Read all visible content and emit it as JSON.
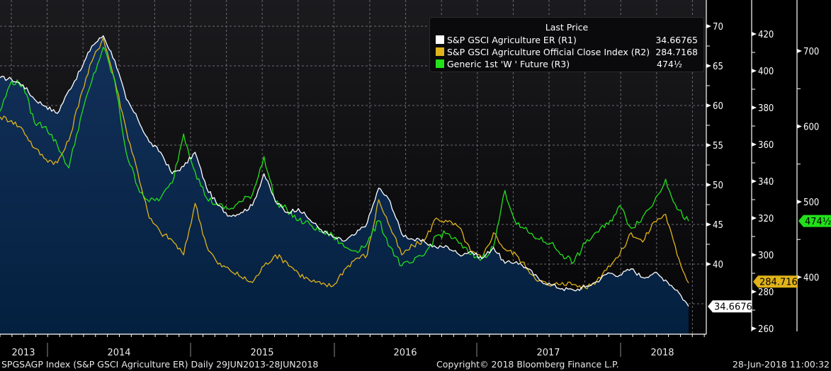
{
  "chart_data": {
    "type": "line",
    "title": "",
    "legend": {
      "title": "Last Price",
      "placement": "top-right",
      "entries": [
        {
          "name": "S&P GSCI Agriculture ER  (R1)",
          "value": "34.66765",
          "color": "#ffffff"
        },
        {
          "name": "S&P GSCI Agriculture Official Close Index  (R2)",
          "value": "284.7168",
          "color": "#e0b31a"
        },
        {
          "name": "Generic 1st 'W ' Future  (R3)",
          "value": "474½",
          "color": "#22e01a"
        }
      ]
    },
    "x_range": [
      "2013-06-29",
      "2018-06-28"
    ],
    "x_labels": [
      "2013",
      "2014",
      "2015",
      "2016",
      "2017",
      "2018"
    ],
    "x_sampling": "monthly, Jul-2013 to Jun-2018",
    "axes": {
      "R1": {
        "ticks": [
          40,
          45,
          50,
          55,
          60,
          65,
          70
        ],
        "range": [
          31.3,
          70.1
        ]
      },
      "R2": {
        "ticks": [
          260,
          280,
          300,
          320,
          340,
          360,
          380,
          400,
          420
        ],
        "range": [
          258,
          424
        ]
      },
      "R3": {
        "ticks": [
          400,
          500,
          600,
          700
        ],
        "range": [
          328,
          733
        ]
      }
    },
    "grid": true,
    "series": [
      {
        "name": "S&P GSCI Agriculture ER (R1)",
        "axis": "R1",
        "color": "#ffffff",
        "filled": true,
        "last_label": "34.66765",
        "values": [
          63.5,
          63.3,
          62.6,
          60.8,
          59.9,
          59.0,
          61.9,
          64.4,
          67.5,
          68.8,
          65.7,
          60.8,
          58.3,
          55.4,
          54.1,
          51.4,
          52.3,
          54.1,
          49.6,
          47.4,
          46.1,
          46.5,
          47.4,
          51.4,
          47.9,
          46.5,
          47.0,
          45.6,
          44.3,
          43.4,
          42.9,
          43.8,
          45.2,
          49.6,
          47.9,
          43.8,
          43.1,
          42.8,
          42.1,
          42.2,
          41.2,
          41.6,
          40.7,
          42.1,
          40.1,
          40.3,
          39.4,
          38.0,
          37.4,
          36.9,
          36.7,
          37.1,
          37.8,
          38.9,
          38.6,
          39.4,
          38.3,
          38.9,
          38.0,
          36.7,
          34.67
        ]
      },
      {
        "name": "S&P GSCI Agriculture Official Close Index (R2)",
        "axis": "R2",
        "color": "#e0b31a",
        "last_label": "284.7168",
        "values": [
          375,
          373,
          368,
          358,
          352,
          350,
          362,
          386,
          405,
          418,
          395,
          368,
          345,
          320,
          312,
          308,
          300,
          328,
          305,
          295,
          292,
          288,
          285,
          294,
          300,
          296,
          290,
          286,
          284,
          283,
          292,
          298,
          300,
          330,
          315,
          300,
          305,
          308,
          320,
          318,
          315,
          302,
          298,
          312,
          303,
          300,
          292,
          286,
          283,
          285,
          284,
          282,
          286,
          294,
          300,
          312,
          307,
          318,
          322,
          300,
          284.72
        ]
      },
      {
        "name": "Generic 1st 'W ' Future (R3)",
        "axis": "R3",
        "color": "#22e01a",
        "last_label": "474½",
        "values": [
          620,
          660,
          655,
          605,
          600,
          575,
          545,
          610,
          660,
          705,
          660,
          565,
          520,
          500,
          505,
          525,
          590,
          540,
          505,
          495,
          490,
          500,
          510,
          560,
          500,
          490,
          475,
          470,
          460,
          455,
          440,
          435,
          445,
          475,
          440,
          415,
          420,
          430,
          455,
          458,
          445,
          430,
          425,
          440,
          515,
          470,
          460,
          450,
          445,
          430,
          420,
          445,
          460,
          470,
          495,
          465,
          480,
          500,
          530,
          490,
          474.5
        ]
      }
    ]
  },
  "axis_labels": {
    "r1_ticks": [
      "70",
      "65",
      "60",
      "55",
      "50",
      "45",
      "40"
    ],
    "r2_ticks": [
      "420",
      "400",
      "380",
      "360",
      "340",
      "320",
      "300",
      "280",
      "260"
    ],
    "r3_ticks": [
      "700",
      "600",
      "500",
      "400"
    ]
  },
  "footer": {
    "left": "SPGSAGP Index (S&P GSCI Agriculture ER)  Daily 29JUN2013-28JUN2018",
    "center": "Copyright© 2018 Bloomberg Finance L.P.",
    "right": "28-Jun-2018 11:00:32"
  }
}
